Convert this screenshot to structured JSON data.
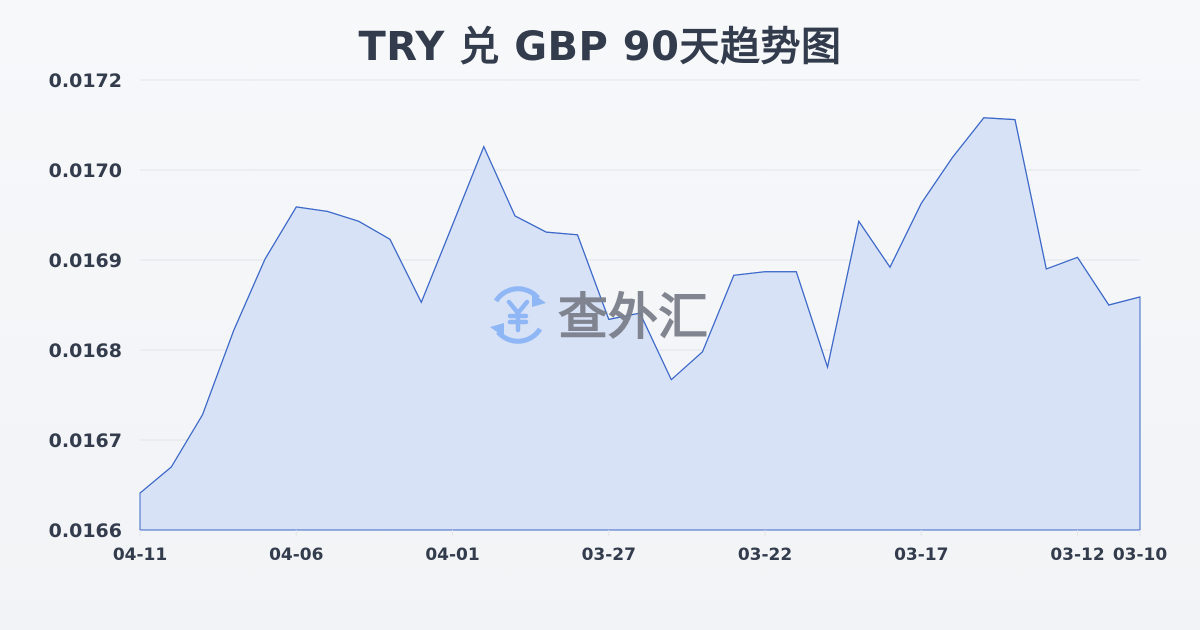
{
  "chart_data": {
    "type": "area",
    "title": "TRY 兑 GBP 90天趋势图",
    "xlabel": "",
    "ylabel": "",
    "x": [
      "04-11",
      "04-10",
      "04-09",
      "04-08",
      "04-07",
      "04-06",
      "04-05",
      "04-04",
      "04-03",
      "04-02",
      "04-01",
      "03-31",
      "03-30",
      "03-29",
      "03-28",
      "03-27",
      "03-26",
      "03-25",
      "03-24",
      "03-23",
      "03-22",
      "03-21",
      "03-20",
      "03-19",
      "03-18",
      "03-17",
      "03-16",
      "03-15",
      "03-14",
      "03-13",
      "03-12",
      "03-11",
      "03-10"
    ],
    "values": [
      0.016641,
      0.01667,
      0.016728,
      0.016822,
      0.016901,
      0.016959,
      0.016954,
      0.016943,
      0.016923,
      0.016853,
      0.016939,
      0.017026,
      0.016949,
      0.016931,
      0.016928,
      0.016834,
      0.016841,
      0.016767,
      0.016798,
      0.016883,
      0.016887,
      0.016887,
      0.016781,
      0.016943,
      0.016892,
      0.016963,
      0.017014,
      0.017058,
      0.017056,
      0.01689,
      0.016903,
      0.01685,
      0.016859
    ],
    "x_tick_labels": [
      "04-11",
      "04-06",
      "04-01",
      "03-27",
      "03-22",
      "03-17",
      "03-12",
      "03-10"
    ],
    "y_tick_labels": [
      "0.0166",
      "0.0167",
      "0.0168",
      "0.0169",
      "0.0170",
      "0.0172"
    ],
    "ylim": [
      0.0166,
      0.0171
    ],
    "grid": true,
    "legend": "none",
    "colors": {
      "line": "#3a67c8",
      "fill": "#d6e0f5",
      "grid": "#e1e4ea",
      "text": "#333c4c"
    }
  },
  "watermark": {
    "text": "查外汇",
    "icon": "yuen-exchange-icon",
    "icon_color": "#8cb4f5"
  }
}
